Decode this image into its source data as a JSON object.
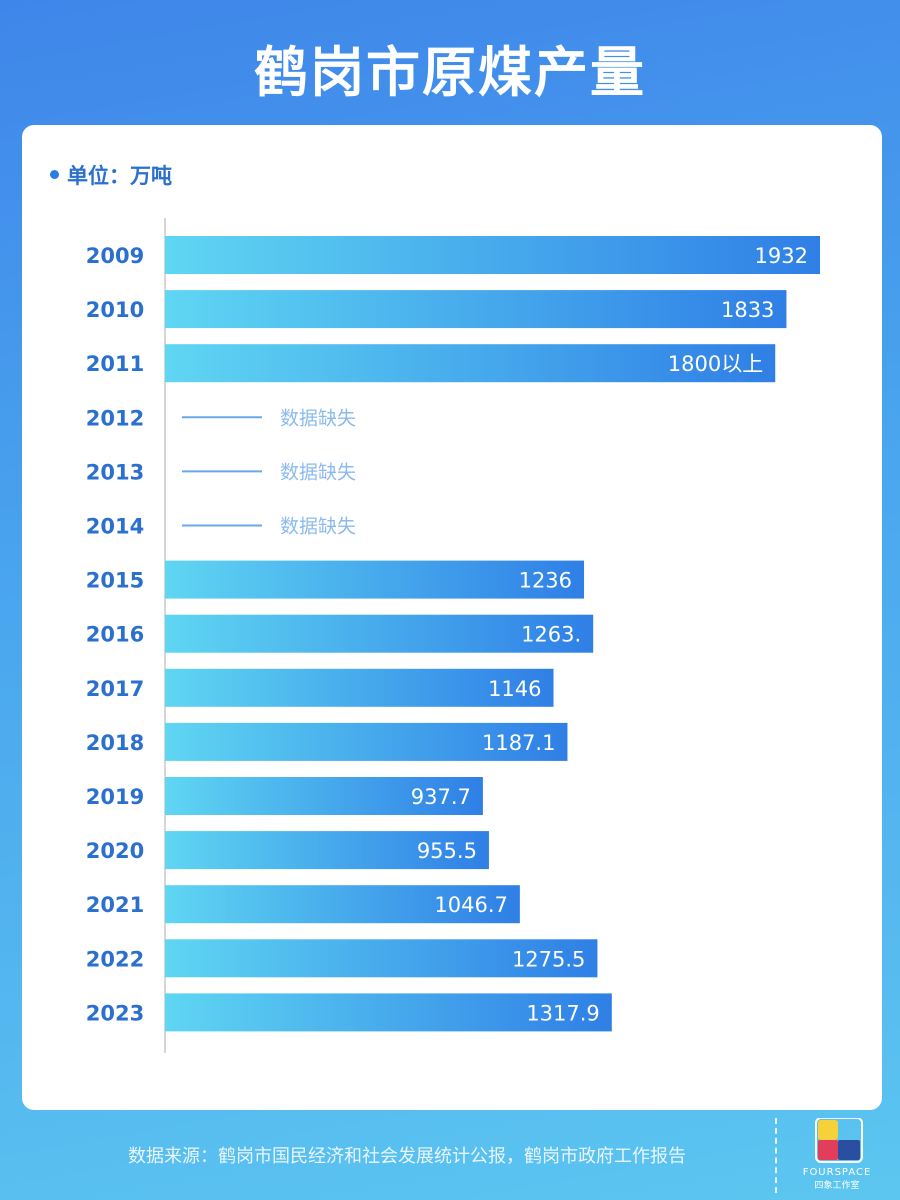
{
  "title": "鹤岗市原煤产量",
  "unit_label": "单位：万吨",
  "source": "数据来源：鹤岗市国民经济和社会发展统计公报，鹤岗市政府工作报告",
  "logo": {
    "text": "FOURSPACE",
    "subtext": "四象工作室"
  },
  "colors": {
    "bar_start": "#5fd6f2",
    "bar_end": "#2f7fe6",
    "year_label": "#2b6fcf",
    "missing": "#8bbbee"
  },
  "chart_data": {
    "type": "bar",
    "orientation": "horizontal",
    "categories": [
      "2009",
      "2010",
      "2011",
      "2012",
      "2013",
      "2014",
      "2015",
      "2016",
      "2017",
      "2018",
      "2019",
      "2020",
      "2021",
      "2022",
      "2023"
    ],
    "values": [
      1932,
      1833,
      1800,
      null,
      null,
      null,
      1236,
      1263,
      1146,
      1187.1,
      937.7,
      955.5,
      1046.7,
      1275.5,
      1317.9
    ],
    "data_labels": [
      "1932",
      "1833",
      "1800以上",
      "数据缺失",
      "数据缺失",
      "数据缺失",
      "1236",
      "1263.",
      "1146",
      "1187.1",
      "937.7",
      "955.5",
      "1046.7",
      "1275.5",
      "1317.9"
    ],
    "ylabel": "单位：万吨",
    "xlim": [
      0,
      1932
    ],
    "grid": false,
    "legend": "none"
  }
}
